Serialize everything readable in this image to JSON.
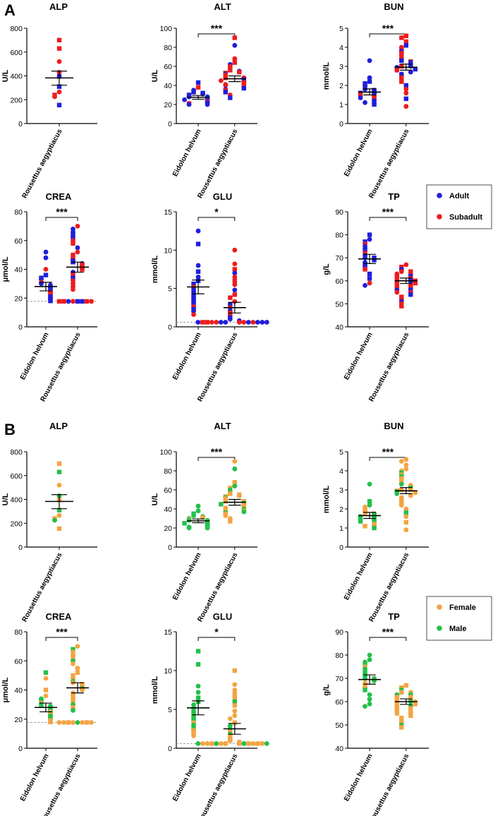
{
  "colors": {
    "adult": "#1f1fdb",
    "subadult": "#ee1c1c",
    "female": "#f4a442",
    "male": "#22c04a",
    "axis": "#000000",
    "threshold": "#9a9a9a"
  },
  "figure": {
    "panels": [
      {
        "letter": "A",
        "legend": {
          "items": [
            {
              "label": "Adult",
              "color_key": "adult"
            },
            {
              "label": "Subadult",
              "color_key": "subadult"
            }
          ]
        }
      },
      {
        "letter": "B",
        "legend": {
          "items": [
            {
              "label": "Female",
              "color_key": "female"
            },
            {
              "label": "Male",
              "color_key": "male"
            }
          ]
        }
      }
    ]
  },
  "chart_data": [
    {
      "type": "scatter",
      "title": "ALP",
      "ylabel": "U/L",
      "ylim": [
        0,
        800
      ],
      "yticks": [
        0,
        200,
        400,
        600,
        800
      ],
      "categories": [
        "Rousettus aegyptiacus"
      ],
      "significance": "",
      "threshold": null,
      "groups": [
        {
          "category": "Rousettus aegyptiacus",
          "mean": 383,
          "sem_low": 322,
          "sem_high": 440,
          "points": [
            {
              "v": 700,
              "A": "subadult",
              "B": "female",
              "m": "square"
            },
            {
              "v": 630,
              "A": "subadult",
              "B": "male",
              "m": "square"
            },
            {
              "v": 520,
              "A": "subadult",
              "B": "female",
              "m": "circle"
            },
            {
              "v": 430,
              "A": "subadult",
              "B": "male",
              "m": "circle"
            },
            {
              "v": 395,
              "A": "adult",
              "B": "female",
              "m": "square"
            },
            {
              "v": 310,
              "A": "adult",
              "B": "male",
              "m": "square"
            },
            {
              "v": 265,
              "A": "subadult",
              "B": "female",
              "m": "circle"
            },
            {
              "v": 240,
              "A": "subadult",
              "B": "female",
              "m": "square"
            },
            {
              "v": 225,
              "A": "subadult",
              "B": "male",
              "m": "circle"
            },
            {
              "v": 155,
              "A": "adult",
              "B": "female",
              "m": "square"
            }
          ]
        }
      ]
    },
    {
      "type": "scatter",
      "title": "ALT",
      "ylabel": "U/L",
      "ylim": [
        0,
        100
      ],
      "yticks": [
        0,
        20,
        40,
        60,
        80,
        100
      ],
      "categories": [
        "Eidolon helvum",
        "Rousettus aegyptiacus"
      ],
      "significance": "***",
      "threshold": null,
      "groups": [
        {
          "category": "Eidolon helvum",
          "mean": 27.5,
          "sem_low": 25.5,
          "sem_high": 29.5,
          "values": [
            43,
            38,
            35,
            33,
            32,
            31,
            30,
            29,
            28,
            28,
            27,
            26,
            25,
            25,
            24,
            23,
            22,
            21,
            20,
            20
          ]
        },
        {
          "category": "Rousettus aegyptiacus",
          "mean": 47,
          "sem_low": 44,
          "sem_high": 50,
          "values": [
            90,
            82,
            68,
            64,
            62,
            60,
            58,
            56,
            55,
            54,
            53,
            52,
            51,
            50,
            49,
            48,
            48,
            47,
            46,
            45,
            45,
            44,
            43,
            42,
            41,
            40,
            40,
            39,
            38,
            37,
            36,
            35,
            34,
            33,
            30,
            27
          ]
        }
      ]
    },
    {
      "type": "scatter",
      "title": "BUN",
      "ylabel": "mmol/L",
      "ylim": [
        0,
        5
      ],
      "yticks": [
        0,
        1,
        2,
        3,
        4,
        5
      ],
      "categories": [
        "Eidolon helvum",
        "Rousettus aegyptiacus"
      ],
      "significance": "***",
      "threshold": null,
      "groups": [
        {
          "category": "Eidolon helvum",
          "mean": 1.65,
          "sem_low": 1.5,
          "sem_high": 1.82,
          "values": [
            3.3,
            2.4,
            2.2,
            2.1,
            2.0,
            1.9,
            1.8,
            1.75,
            1.7,
            1.6,
            1.6,
            1.5,
            1.5,
            1.4,
            1.35,
            1.3,
            1.2,
            1.1,
            1.05,
            1.0
          ]
        },
        {
          "category": "Rousettus aegyptiacus",
          "mean": 2.95,
          "sem_low": 2.8,
          "sem_high": 3.12,
          "values": [
            4.6,
            4.5,
            4.3,
            4.1,
            4.0,
            3.9,
            3.8,
            3.7,
            3.6,
            3.5,
            3.4,
            3.3,
            3.25,
            3.2,
            3.1,
            3.0,
            3.0,
            2.95,
            2.9,
            2.85,
            2.8,
            2.7,
            2.6,
            2.5,
            2.4,
            2.3,
            2.2,
            2.0,
            1.8,
            1.6,
            1.3,
            0.9
          ]
        }
      ]
    },
    {
      "type": "scatter",
      "title": "CREA",
      "ylabel": "μmol/L",
      "ylim": [
        0,
        80
      ],
      "yticks": [
        0,
        20,
        40,
        60,
        80
      ],
      "categories": [
        "Eidolon helvum",
        "Rousettus aegyptiacus"
      ],
      "significance": "***",
      "threshold": 17.7,
      "groups": [
        {
          "category": "Eidolon helvum",
          "mean": 28,
          "sem_low": 25,
          "sem_high": 31,
          "values": [
            52,
            48,
            40,
            36,
            34,
            33,
            31,
            30,
            29,
            28,
            27,
            26,
            25,
            24,
            23,
            22,
            21,
            20,
            19,
            18
          ]
        },
        {
          "category": "Rousettus aegyptiacus",
          "mean": 41.5,
          "sem_low": 38,
          "sem_high": 45,
          "values": [
            70,
            68,
            66,
            64,
            62,
            60,
            58,
            55,
            52,
            50,
            48,
            46,
            45,
            44,
            43,
            42,
            41,
            40,
            38,
            36,
            34,
            32,
            30,
            28,
            26,
            17.7,
            17.7,
            17.7,
            17.7,
            17.7,
            17.7,
            17.7,
            17.7
          ]
        }
      ]
    },
    {
      "type": "scatter",
      "title": "GLU",
      "ylabel": "mmol/L",
      "ylim": [
        0,
        15
      ],
      "yticks": [
        0,
        5,
        10,
        15
      ],
      "categories": [
        "Eidolon helvum",
        "Rousettus aegyptiacus"
      ],
      "significance": "*",
      "threshold": 0.6,
      "groups": [
        {
          "category": "Eidolon helvum",
          "mean": 5.2,
          "sem_low": 4.3,
          "sem_high": 6.1,
          "values": [
            12.5,
            10.8,
            8.0,
            7.2,
            6.5,
            6.0,
            5.6,
            5.2,
            4.8,
            4.5,
            4.2,
            3.9,
            3.6,
            3.3,
            3.0,
            2.6,
            2.3,
            2.0,
            1.6
          ]
        },
        {
          "category": "Rousettus aegyptiacus",
          "mean": 2.5,
          "sem_low": 1.8,
          "sem_high": 3.2,
          "values": [
            10.0,
            8.2,
            7.5,
            7.0,
            6.5,
            6.0,
            5.5,
            4.8,
            4.2,
            3.8,
            3.3,
            2.9,
            2.5,
            2.1,
            1.8,
            1.5,
            1.2,
            1.0,
            0.8,
            0.6,
            0.6,
            0.6,
            0.6,
            0.6,
            0.6,
            0.6,
            0.6,
            0.6,
            0.6,
            0.6,
            0.6,
            0.6,
            0.6
          ]
        }
      ]
    },
    {
      "type": "scatter",
      "title": "TP",
      "ylabel": "g/L",
      "ylim": [
        40,
        90
      ],
      "yticks": [
        40,
        50,
        60,
        70,
        80,
        90
      ],
      "categories": [
        "Eidolon helvum",
        "Rousettus aegyptiacus"
      ],
      "significance": "***",
      "threshold": null,
      "groups": [
        {
          "category": "Eidolon helvum",
          "mean": 69.5,
          "sem_low": 67.5,
          "sem_high": 71.5,
          "values": [
            80,
            78,
            77,
            76,
            75,
            74,
            73,
            72,
            71,
            70,
            70,
            69,
            68,
            67,
            66,
            65,
            63,
            61,
            59,
            58
          ]
        },
        {
          "category": "Rousettus aegyptiacus",
          "mean": 60,
          "sem_low": 58.8,
          "sem_high": 61.2,
          "values": [
            67,
            66,
            65,
            64,
            64,
            63,
            63,
            62,
            62,
            61,
            61,
            60,
            60,
            60,
            59,
            59,
            58,
            58,
            57,
            57,
            56,
            56,
            55,
            55,
            54,
            53,
            52,
            51,
            50,
            49
          ]
        }
      ]
    }
  ]
}
